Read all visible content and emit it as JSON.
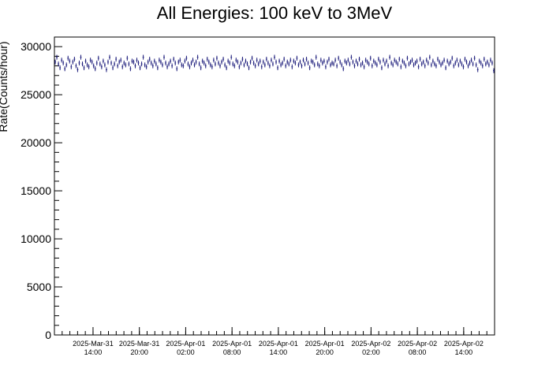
{
  "chart_data": {
    "type": "scatter",
    "title": "All Energies:  100 keV to 3MeV",
    "xlabel": "",
    "ylabel": "Rate(Counts/hour)",
    "ylim": [
      0,
      31000
    ],
    "xlim": [
      "2025-03-31 09:00",
      "2025-04-02 18:00"
    ],
    "yticks": [
      0,
      5000,
      10000,
      15000,
      20000,
      25000,
      30000
    ],
    "xticks": [
      {
        "date": "2025-Mar-31",
        "time": "14:00"
      },
      {
        "date": "2025-Mar-31",
        "time": "20:00"
      },
      {
        "date": "2025-Apr-01",
        "time": "02:00"
      },
      {
        "date": "2025-Apr-01",
        "time": "08:00"
      },
      {
        "date": "2025-Apr-01",
        "time": "14:00"
      },
      {
        "date": "2025-Apr-01",
        "time": "20:00"
      },
      {
        "date": "2025-Apr-02",
        "time": "02:00"
      },
      {
        "date": "2025-Apr-02",
        "time": "08:00"
      },
      {
        "date": "2025-Apr-02",
        "time": "14:00"
      }
    ],
    "series": [
      {
        "color": "#1a1a7a",
        "error": 250,
        "x_start": "2025-03-31 09:00",
        "x_end": "2025-04-02 18:00",
        "values": [
          28400,
          28900,
          28200,
          27800,
          28600,
          28300,
          27700,
          28100,
          28800,
          28500,
          27900,
          28400,
          28700,
          28000,
          27600,
          28300,
          28900,
          28200,
          27800,
          28500,
          28100,
          27900,
          28600,
          28400,
          28000,
          27700,
          28300,
          28800,
          28200,
          27900,
          28500,
          28100,
          27600,
          28400,
          28900,
          28300,
          27800,
          28200,
          28700,
          28000,
          28400,
          28600,
          27900,
          28300,
          28100,
          28800,
          28200,
          27700,
          28500,
          28400,
          28000,
          28600,
          28300,
          27800,
          28200,
          28900,
          28100,
          27900,
          28400,
          28700,
          28300,
          28000,
          28500,
          28200,
          27800,
          28600,
          28400,
          28100,
          28900,
          28300,
          27900,
          28200,
          28500,
          28000,
          28700,
          28300,
          27700,
          28400,
          28600,
          28100,
          28000,
          28500,
          28800,
          28200,
          27900,
          28300,
          28600,
          28100,
          28400,
          28900,
          28200,
          27800,
          28500,
          28300,
          28000,
          28700,
          28400,
          28100,
          27900,
          28600,
          28200,
          28800,
          28300,
          28000,
          28400,
          28700,
          28100,
          27800,
          28500,
          28300,
          28900,
          28200,
          28000,
          28600,
          28400,
          27900,
          28300,
          28700,
          28100,
          28500,
          28200,
          27800,
          28400,
          28800,
          28300,
          28000,
          28600,
          28200,
          28500,
          27900,
          28400,
          28100,
          28700,
          28300,
          28000,
          28600,
          28200,
          28900,
          28400,
          27800,
          28500,
          28100,
          28300,
          28700,
          28000,
          28400,
          28200,
          28600,
          27900,
          28500,
          28300,
          28800,
          28100,
          28400,
          28000,
          28600,
          28200,
          28700,
          28300,
          27800,
          28500,
          28400,
          28100,
          28900,
          28200,
          28000,
          28600,
          28300,
          28500,
          27900,
          28400,
          28700,
          28100,
          28300,
          28200,
          28600,
          28000,
          28800,
          28400,
          28100,
          27700,
          28500,
          28300,
          28600,
          28200,
          28900,
          28400,
          28000,
          28500,
          28200,
          28700,
          28100,
          28300,
          27900,
          28600,
          28400,
          28200,
          28800,
          28000,
          28500,
          28300,
          28100,
          28700,
          28400,
          27800,
          28600,
          28200,
          28500,
          28000,
          28900,
          28300,
          28100,
          28600,
          28400,
          28200,
          28700,
          27900,
          28500,
          28300,
          28000,
          28800,
          28200,
          28400,
          28600,
          28100,
          28300,
          28500,
          27900,
          28700,
          28200,
          28400,
          28000,
          28600,
          28300,
          28900,
          28100,
          28500,
          28200,
          28000,
          28700,
          28400,
          28100,
          28300,
          28600,
          27800,
          28500,
          28200,
          28400,
          28800,
          28000,
          28300,
          28600,
          28100,
          28500,
          28200,
          27900,
          28700,
          28400,
          28000,
          28300,
          28600,
          28200,
          28800,
          28100,
          27600,
          28500,
          28300,
          28000,
          28700,
          28200,
          28400,
          28100,
          28600,
          28300,
          27500
        ]
      }
    ]
  }
}
